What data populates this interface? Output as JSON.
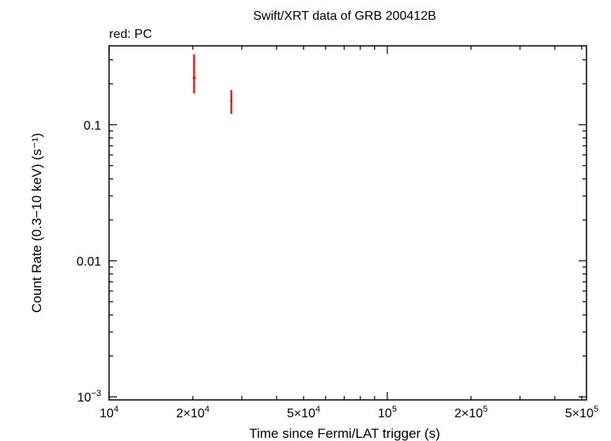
{
  "chart_data": {
    "type": "scatter",
    "title": "Swift/XRT data of GRB 200412B",
    "subtitle": "red: PC",
    "xlabel": "Time since Fermi/LAT trigger (s)",
    "ylabel": "Count Rate (0.3−10 keV) (s⁻¹)",
    "x_scale": "log",
    "y_scale": "log",
    "xlim": [
      10000,
      520000
    ],
    "ylim": [
      0.00095,
      0.38
    ],
    "x_ticks": [
      {
        "value": 10000,
        "base": "10",
        "exp": "4"
      },
      {
        "value": 20000,
        "base": "2×10",
        "exp": "4"
      },
      {
        "value": 50000,
        "base": "5×10",
        "exp": "4"
      },
      {
        "value": 100000,
        "base": "10",
        "exp": "5"
      },
      {
        "value": 200000,
        "base": "2×10",
        "exp": "5"
      },
      {
        "value": 500000,
        "base": "5×10",
        "exp": "5"
      }
    ],
    "y_ticks": [
      {
        "value": 0.001,
        "base": "10",
        "exp": "−3"
      },
      {
        "value": 0.01,
        "base": "0.01",
        "exp": ""
      },
      {
        "value": 0.1,
        "base": "0.1",
        "exp": ""
      }
    ],
    "series": [
      {
        "name": "PC",
        "color": "#ff0000",
        "points": [
          {
            "x": 20200,
            "x_lo": 20000,
            "x_hi": 20500,
            "y": 0.22,
            "y_lo": 0.17,
            "y_hi": 0.33
          },
          {
            "x": 27500,
            "x_lo": 27350,
            "x_hi": 27650,
            "y": 0.15,
            "y_lo": 0.12,
            "y_hi": 0.18
          }
        ]
      }
    ],
    "grid": false,
    "legend": "none"
  }
}
